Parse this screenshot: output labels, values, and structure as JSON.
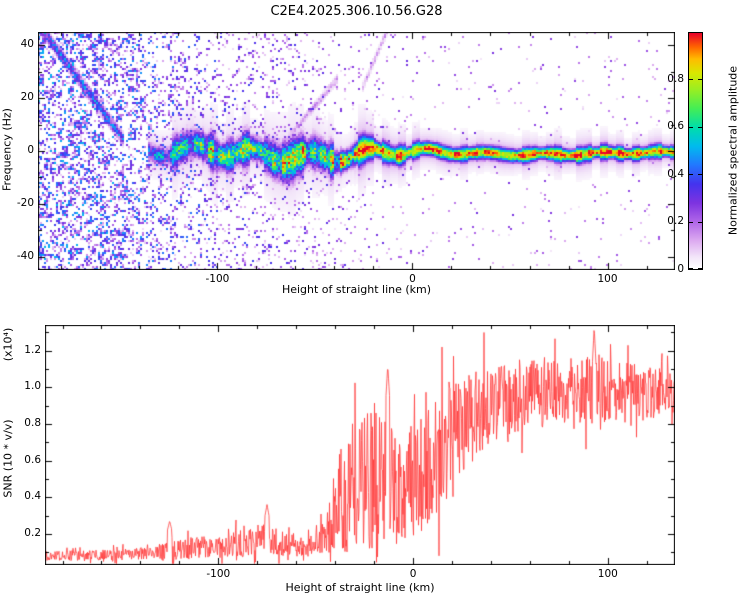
{
  "title": "C2E4.2025.306.10.56.G28",
  "chart_data": [
    {
      "type": "heatmap",
      "title": "C2E4.2025.306.10.56.G28",
      "xlabel": "Height of straight line (km)",
      "ylabel": "Frequency (Hz)",
      "xlim": [
        -192,
        134.6
      ],
      "ylim": [
        -45,
        45
      ],
      "xticks": [
        {
          "v": -100,
          "label": "-100"
        },
        {
          "v": 0,
          "label": "0"
        },
        {
          "v": 100,
          "label": "100"
        }
      ],
      "x_minor_step": 20,
      "yticks": [
        {
          "v": 40,
          "label": "40"
        },
        {
          "v": 20,
          "label": "20"
        },
        {
          "v": 0,
          "label": "0"
        },
        {
          "v": -20,
          "label": "-20"
        },
        {
          "v": -40,
          "label": "-40"
        }
      ],
      "y_minor_step": 10,
      "grid": false,
      "colorbar": {
        "label": "Normalized spectral amplitude",
        "range": [
          0,
          1
        ],
        "ticks": [
          {
            "v": 0,
            "label": "0"
          },
          {
            "v": 0.2,
            "label": "0.2"
          },
          {
            "v": 0.4,
            "label": "0.4"
          },
          {
            "v": 0.6,
            "label": "0.6"
          },
          {
            "v": 0.8,
            "label": "0.8"
          }
        ],
        "stops": [
          [
            0.0,
            "#ffffff"
          ],
          [
            0.05,
            "#f3e6f9"
          ],
          [
            0.12,
            "#dcaaf0"
          ],
          [
            0.2,
            "#b066e8"
          ],
          [
            0.28,
            "#7d33e0"
          ],
          [
            0.36,
            "#4433ee"
          ],
          [
            0.44,
            "#2277ff"
          ],
          [
            0.52,
            "#00bbee"
          ],
          [
            0.6,
            "#00ddaa"
          ],
          [
            0.68,
            "#44ee55"
          ],
          [
            0.76,
            "#99ee22"
          ],
          [
            0.83,
            "#d8e800"
          ],
          [
            0.89,
            "#ffbb00"
          ],
          [
            0.94,
            "#ff6600"
          ],
          [
            1.0,
            "#e8002a"
          ]
        ]
      },
      "content": {
        "description": "Dense violet noise speckle left of -135 km with a diagonal streak descending from the top-left corner; a horizontal spectral band near 0 Hz runs from about -135 km to the right edge - diffuse and blue/green until -30 km, then a narrow yellow-green band with a red core",
        "band": {
          "start_x": -136,
          "center_hz": -0.8,
          "wiggle": [
            [
              0.21,
              2.2
            ],
            [
              0.053,
              1.5
            ]
          ],
          "damp_x0": -30,
          "damp_x1": 30,
          "damp_min": 0.25,
          "width_pts": [
            [
              -136,
              5
            ],
            [
              -100,
              6
            ],
            [
              -60,
              6.5
            ],
            [
              -30,
              5
            ],
            [
              0,
              3.2
            ],
            [
              60,
              2.8
            ],
            [
              134,
              2.4
            ]
          ],
          "intensity_pts": [
            [
              -136,
              0.45
            ],
            [
              -120,
              0.62
            ],
            [
              -100,
              0.72
            ],
            [
              -60,
              0.82
            ],
            [
              -30,
              0.92
            ],
            [
              0,
              0.97
            ],
            [
              134,
              0.97
            ]
          ],
          "halo": 0.12
        },
        "speckle_density": [
          [
            -192,
            0.52
          ],
          [
            -150,
            0.48
          ],
          [
            -135,
            0.3
          ],
          [
            -110,
            0.2
          ],
          [
            -70,
            0.15
          ],
          [
            -40,
            0.09
          ],
          [
            -15,
            0.04
          ],
          [
            0,
            0.028
          ],
          [
            134,
            0.02
          ]
        ],
        "speckle_amp": [
          [
            -192,
            0.48
          ],
          [
            -140,
            0.44
          ],
          [
            -100,
            0.36
          ],
          [
            -60,
            0.3
          ],
          [
            0,
            0.26
          ],
          [
            134,
            0.2
          ]
        ],
        "streaks": [
          {
            "x0": -190,
            "f0": 46,
            "x1": -148,
            "f1": 4,
            "w": 3.5,
            "v": 0.42
          },
          {
            "x0": -63,
            "f0": 6,
            "x1": -38,
            "f1": 28,
            "w": 2.5,
            "v": 0.16
          },
          {
            "x0": -26,
            "f0": 24,
            "x1": -13,
            "f1": 46,
            "w": 2.5,
            "v": 0.15
          }
        ]
      }
    },
    {
      "type": "line",
      "xlabel": "Height of straight line (km)",
      "ylabel": "SNR (10 * v/v)",
      "scale_label": "(x10⁴)",
      "xlim": [
        -189,
        134.5
      ],
      "ylim": [
        0.03,
        1.34
      ],
      "xticks": [
        {
          "v": -100,
          "label": "-100"
        },
        {
          "v": 0,
          "label": "0"
        },
        {
          "v": 100,
          "label": "100"
        }
      ],
      "x_minor_step": 20,
      "yticks": [
        {
          "v": 0.2,
          "label": "0.2"
        },
        {
          "v": 0.4,
          "label": "0.4"
        },
        {
          "v": 0.6,
          "label": "0.6"
        },
        {
          "v": 0.8,
          "label": "0.8"
        },
        {
          "v": 1.0,
          "label": "1.0"
        },
        {
          "v": 1.2,
          "label": "1.2"
        }
      ],
      "y_minor_step": 0.1,
      "color": "#ff3c3c",
      "series": [
        {
          "name": "SNR",
          "envelope": [
            [
              -189,
              0.08,
              0.025
            ],
            [
              -160,
              0.085,
              0.03
            ],
            [
              -140,
              0.09,
              0.035
            ],
            [
              -128,
              0.1,
              0.05
            ],
            [
              -115,
              0.12,
              0.06
            ],
            [
              -100,
              0.13,
              0.06
            ],
            [
              -88,
              0.15,
              0.08
            ],
            [
              -78,
              0.17,
              0.09
            ],
            [
              -68,
              0.15,
              0.07
            ],
            [
              -58,
              0.13,
              0.05
            ],
            [
              -50,
              0.15,
              0.06
            ],
            [
              -44,
              0.2,
              0.12
            ],
            [
              -38,
              0.35,
              0.25
            ],
            [
              -32,
              0.45,
              0.35
            ],
            [
              -26,
              0.5,
              0.38
            ],
            [
              -20,
              0.52,
              0.4
            ],
            [
              -14,
              0.55,
              0.42
            ],
            [
              -9,
              0.45,
              0.33
            ],
            [
              -4,
              0.45,
              0.3
            ],
            [
              0,
              0.48,
              0.3
            ],
            [
              6,
              0.55,
              0.32
            ],
            [
              12,
              0.62,
              0.32
            ],
            [
              18,
              0.7,
              0.3
            ],
            [
              25,
              0.78,
              0.28
            ],
            [
              32,
              0.85,
              0.24
            ],
            [
              40,
              0.9,
              0.22
            ],
            [
              50,
              0.94,
              0.2
            ],
            [
              60,
              0.96,
              0.19
            ],
            [
              72,
              0.97,
              0.18
            ],
            [
              85,
              0.98,
              0.19
            ],
            [
              95,
              0.99,
              0.2
            ],
            [
              105,
              0.97,
              0.17
            ],
            [
              118,
              0.97,
              0.15
            ],
            [
              134.5,
              0.98,
              0.13
            ]
          ],
          "spikes": [
            [
              -125,
              0.27
            ],
            [
              -75,
              0.36
            ],
            [
              -13,
              1.12
            ],
            [
              93,
              1.33
            ]
          ]
        }
      ]
    }
  ]
}
